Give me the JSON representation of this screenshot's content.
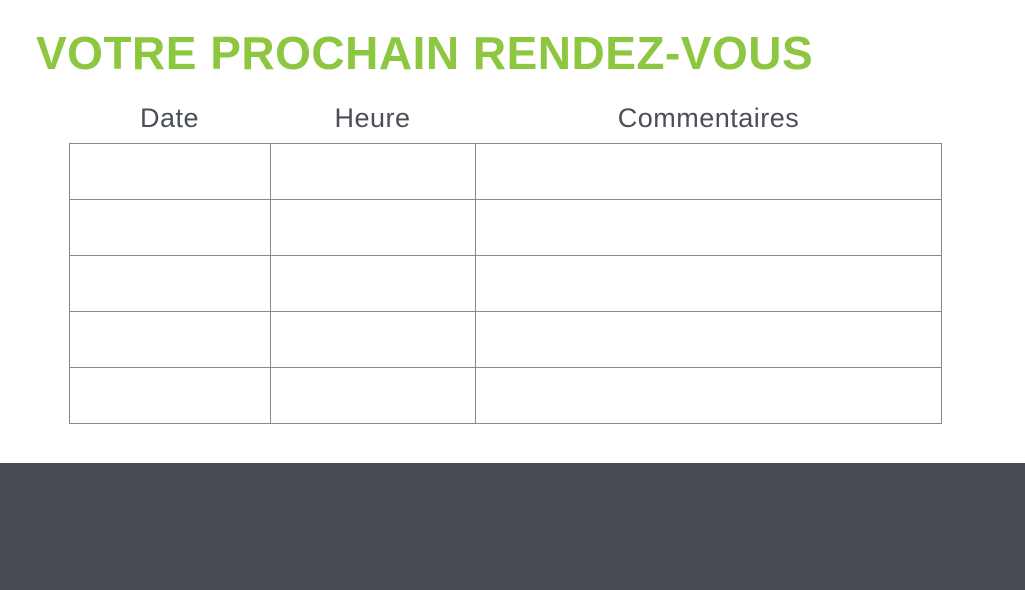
{
  "page": {
    "title": "VOTRE PROCHAIN RENDEZ-VOUS",
    "colors": {
      "title_green": "#8dc63f",
      "header_text": "#4a4f58",
      "table_border": "#85888e",
      "footer_band": "#474c54",
      "background": "#ffffff"
    }
  },
  "table": {
    "columns": [
      "Date",
      "Heure",
      "Commentaires"
    ],
    "rows": [
      [
        "",
        "",
        ""
      ],
      [
        "",
        "",
        ""
      ],
      [
        "",
        "",
        ""
      ],
      [
        "",
        "",
        ""
      ],
      [
        "",
        "",
        ""
      ]
    ]
  }
}
